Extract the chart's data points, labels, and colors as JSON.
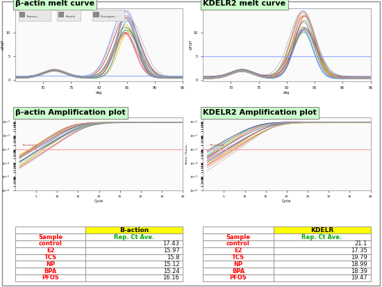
{
  "title_bactin_melt": "β-actin melt curve",
  "title_kdelr2_melt": "KDELR2 melt curve",
  "title_bactin_amp": "β-actin Amplification plot",
  "title_kdelr2_amp": "KDELR2 Amplification plot",
  "bactin_table_header": "B-action",
  "kdelr_table_header": "KDELR",
  "col2_header": "Rep. Ct Ave.",
  "col1_header": "Sample",
  "samples": [
    "control",
    "E2",
    "TCS",
    "NP",
    "BPA",
    "PFOS"
  ],
  "bactin_values": [
    "17.43",
    "15.97",
    "15.8",
    "15.12",
    "15.24",
    "16.16"
  ],
  "kdelr_values": [
    "21.1",
    "17.35",
    "19.79",
    "18.99",
    "18.39",
    "19.47"
  ],
  "header_bg": "#FFFF00",
  "col1_text_color": "#FF0000",
  "col2_header_text_color": "#00AA00",
  "table_border_color": "#888888",
  "outer_bg": "#FFFFFF",
  "title_label_bg": "#CCFFCC",
  "title_label_border": "#888888",
  "title_fontsize": 8,
  "plot_bg": "#FAFAFA",
  "toolbar_bg": "#D8D8D8",
  "hline_melt_color": "#7799FF",
  "hline_amp_color": "#FF9999",
  "melt_curve_colors_bactin": [
    "#CC0000",
    "#FF2200",
    "#FF6600",
    "#FF9900",
    "#CCCC00",
    "#99CC00",
    "#33AA33",
    "#009999",
    "#3366FF",
    "#6633CC",
    "#CC3399",
    "#666666",
    "#999999",
    "#AAAAAA",
    "#BB8888",
    "#8888BB",
    "#88BBBB",
    "#BBAA88"
  ],
  "melt_curve_colors_kdelr": [
    "#CC0000",
    "#FF2200",
    "#FF6600",
    "#FF9900",
    "#CCCC00",
    "#99CC00",
    "#33AA33",
    "#009999",
    "#3366FF",
    "#6633CC",
    "#CC3399",
    "#666666",
    "#999999",
    "#AAAAAA",
    "#BB8888",
    "#8888BB",
    "#88BBBB",
    "#BBAA88"
  ],
  "amp_curve_colors": [
    "#CC0000",
    "#FF2200",
    "#FF6600",
    "#FF9900",
    "#CCCC00",
    "#99CC00",
    "#33AA33",
    "#009999",
    "#3366FF",
    "#6633CC",
    "#CC3399",
    "#666666",
    "#999999",
    "#AAAAAA",
    "#BB8888",
    "#8888BB",
    "#88BBBB",
    "#BBAA88"
  ]
}
